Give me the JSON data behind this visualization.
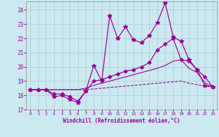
{
  "background_color": "#cce8f0",
  "grid_color": "#aacccc",
  "line_color": "#990099",
  "xlim": [
    -0.5,
    23.5
  ],
  "ylim": [
    17,
    24.6
  ],
  "yticks": [
    17,
    18,
    19,
    20,
    21,
    22,
    23,
    24
  ],
  "xticks": [
    0,
    1,
    2,
    3,
    4,
    5,
    6,
    7,
    8,
    9,
    10,
    11,
    12,
    13,
    14,
    15,
    16,
    17,
    18,
    19,
    20,
    21,
    22,
    23
  ],
  "xlabel": "Windchill (Refroidissement éolien,°C)",
  "series": [
    {
      "x": [
        0,
        1,
        2,
        3,
        4,
        5,
        6,
        7,
        8,
        9,
        10,
        11,
        12,
        13,
        14,
        15,
        16,
        17,
        18,
        19,
        20,
        21,
        22,
        23
      ],
      "y": [
        18.4,
        18.4,
        18.4,
        17.9,
        18.0,
        17.7,
        17.5,
        18.3,
        20.1,
        19.0,
        23.6,
        22.0,
        22.8,
        21.9,
        21.7,
        22.2,
        23.1,
        24.5,
        22.1,
        21.8,
        20.5,
        19.8,
        18.7,
        18.6
      ],
      "marker": "*",
      "markersize": 4,
      "linestyle": "-",
      "linewidth": 0.9
    },
    {
      "x": [
        0,
        1,
        2,
        3,
        4,
        5,
        6,
        7,
        8,
        9,
        10,
        11,
        12,
        13,
        14,
        15,
        16,
        17,
        18,
        19,
        20,
        21,
        22,
        23
      ],
      "y": [
        18.4,
        18.4,
        18.4,
        18.1,
        18.1,
        17.9,
        17.6,
        18.3,
        19.0,
        19.1,
        19.3,
        19.5,
        19.7,
        19.8,
        20.0,
        20.3,
        21.2,
        21.6,
        22.0,
        20.5,
        20.4,
        19.8,
        19.3,
        18.6
      ],
      "marker": "D",
      "markersize": 2.5,
      "linestyle": "-",
      "linewidth": 0.9
    },
    {
      "x": [
        0,
        1,
        2,
        3,
        4,
        5,
        6,
        7,
        8,
        9,
        10,
        11,
        12,
        13,
        14,
        15,
        16,
        17,
        18,
        19,
        20,
        21,
        22,
        23
      ],
      "y": [
        18.4,
        18.4,
        18.4,
        18.4,
        18.4,
        18.4,
        18.4,
        18.5,
        18.7,
        18.85,
        19.0,
        19.15,
        19.3,
        19.45,
        19.6,
        19.75,
        19.9,
        20.1,
        20.4,
        20.5,
        19.9,
        19.6,
        18.9,
        18.6
      ],
      "marker": null,
      "markersize": 0,
      "linestyle": "-",
      "linewidth": 0.8
    },
    {
      "x": [
        0,
        1,
        2,
        3,
        4,
        5,
        6,
        7,
        8,
        9,
        10,
        11,
        12,
        13,
        14,
        15,
        16,
        17,
        18,
        19,
        20,
        21,
        22,
        23
      ],
      "y": [
        18.4,
        18.4,
        18.4,
        18.4,
        18.4,
        18.4,
        18.4,
        18.4,
        18.45,
        18.5,
        18.55,
        18.6,
        18.65,
        18.7,
        18.75,
        18.8,
        18.85,
        18.9,
        18.95,
        19.0,
        18.85,
        18.75,
        18.65,
        18.6
      ],
      "marker": null,
      "markersize": 0,
      "linestyle": "--",
      "linewidth": 0.8
    }
  ]
}
